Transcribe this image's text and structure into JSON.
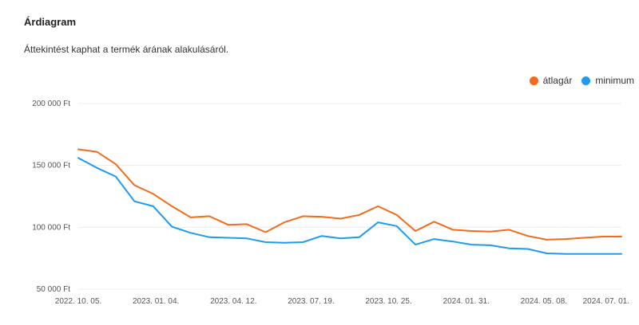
{
  "header": {
    "title": "Árdiagram",
    "subtitle": "Áttekintést kaphat a termék árának alakulásáról."
  },
  "chart_data": {
    "type": "line",
    "title": "",
    "xlabel": "",
    "ylabel": "",
    "ylim": [
      50000,
      200000
    ],
    "y_ticks": [
      50000,
      100000,
      150000,
      200000
    ],
    "y_tick_labels": [
      "50 000 Ft",
      "100 000 Ft",
      "150 000 Ft",
      "200 000 Ft"
    ],
    "x_tick_labels": [
      "2022. 10. 05.",
      "2023. 01. 04.",
      "2023. 04. 12.",
      "2023. 07. 19.",
      "2023. 10. 25.",
      "2024. 01. 31.",
      "2024. 05. 08.",
      "2024. 07. 01."
    ],
    "grid": true,
    "legend_position": "top-right",
    "series": [
      {
        "name": "átlagár",
        "color": "#f26b1d",
        "values": [
          163000,
          161000,
          151000,
          134000,
          127000,
          117000,
          108000,
          109000,
          102000,
          102500,
          96000,
          104000,
          109000,
          108500,
          107000,
          110000,
          117000,
          110000,
          97000,
          104500,
          98000,
          97000,
          96500,
          98000,
          93000,
          90000,
          90500,
          91500,
          92500,
          92500
        ]
      },
      {
        "name": "minimum",
        "color": "#1e9bf0",
        "values": [
          156000,
          148000,
          141000,
          121000,
          117000,
          100500,
          95500,
          92000,
          91500,
          91000,
          88000,
          87500,
          88000,
          93000,
          91000,
          92000,
          104000,
          101000,
          86000,
          90500,
          88500,
          86000,
          85500,
          83000,
          82500,
          79000,
          78500,
          78500,
          78500,
          78500
        ]
      }
    ]
  }
}
